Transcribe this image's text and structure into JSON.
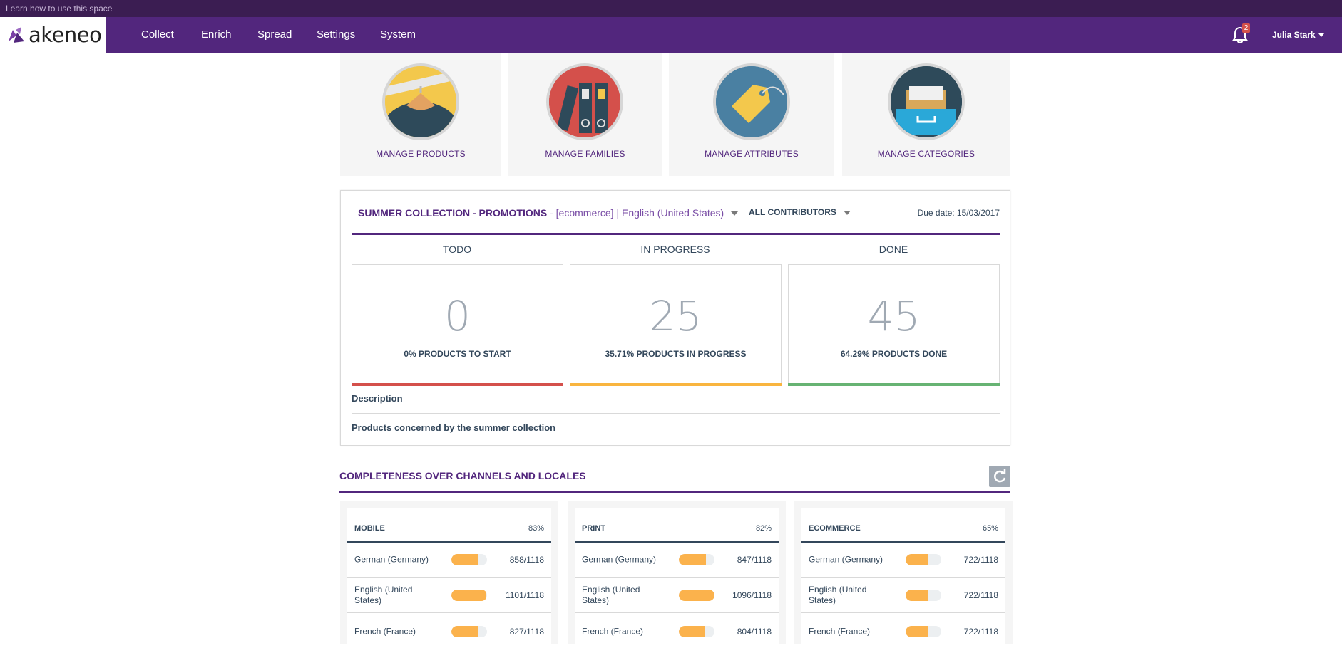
{
  "topbar": {
    "help_link": "Learn how to use this space"
  },
  "app": {
    "logo_text": "akeneo"
  },
  "nav": {
    "items": [
      "Collect",
      "Enrich",
      "Spread",
      "Settings",
      "System"
    ],
    "notification_count": "2",
    "user_name": "Julia Stark"
  },
  "tiles": [
    {
      "label": "MANAGE PRODUCTS",
      "icon": "hanger-icon"
    },
    {
      "label": "MANAGE FAMILIES",
      "icon": "binders-icon"
    },
    {
      "label": "MANAGE ATTRIBUTES",
      "icon": "tag-icon"
    },
    {
      "label": "MANAGE CATEGORIES",
      "icon": "drawer-icon"
    }
  ],
  "project": {
    "name": "SUMMER COLLECTION - PROMOTIONS",
    "scope": " - [ecommerce] | English (United States)",
    "contributors": "ALL CONTRIBUTORS",
    "due_date": "Due date: 15/03/2017",
    "columns": [
      {
        "title": "TODO",
        "value": "0",
        "caption": "0% PRODUCTS TO START",
        "color": "#d4504b"
      },
      {
        "title": "IN PROGRESS",
        "value": "25",
        "caption": "35.71% PRODUCTS IN PROGRESS",
        "color": "#f9b53f"
      },
      {
        "title": "DONE",
        "value": "45",
        "caption": "64.29% PRODUCTS DONE",
        "color": "#67b373"
      }
    ],
    "description_label": "Description",
    "description_text": "Products concerned by the summer collection"
  },
  "completeness": {
    "title": "COMPLETENESS OVER CHANNELS AND LOCALES",
    "channels": [
      {
        "name": "MOBILE",
        "percent": "83%",
        "locales": [
          {
            "name": "German (Germany)",
            "count": "858/1118",
            "ratio": 0.767
          },
          {
            "name": "English (United States)",
            "count": "1101/1118",
            "ratio": 0.985
          },
          {
            "name": "French (France)",
            "count": "827/1118",
            "ratio": 0.74
          }
        ]
      },
      {
        "name": "PRINT",
        "percent": "82%",
        "locales": [
          {
            "name": "German (Germany)",
            "count": "847/1118",
            "ratio": 0.758
          },
          {
            "name": "English (United States)",
            "count": "1096/1118",
            "ratio": 0.98
          },
          {
            "name": "French (France)",
            "count": "804/1118",
            "ratio": 0.719
          }
        ]
      },
      {
        "name": "ECOMMERCE",
        "percent": "65%",
        "locales": [
          {
            "name": "German (Germany)",
            "count": "722/1118",
            "ratio": 0.646
          },
          {
            "name": "English (United States)",
            "count": "722/1118",
            "ratio": 0.646
          },
          {
            "name": "French (France)",
            "count": "722/1118",
            "ratio": 0.646
          }
        ]
      }
    ]
  }
}
